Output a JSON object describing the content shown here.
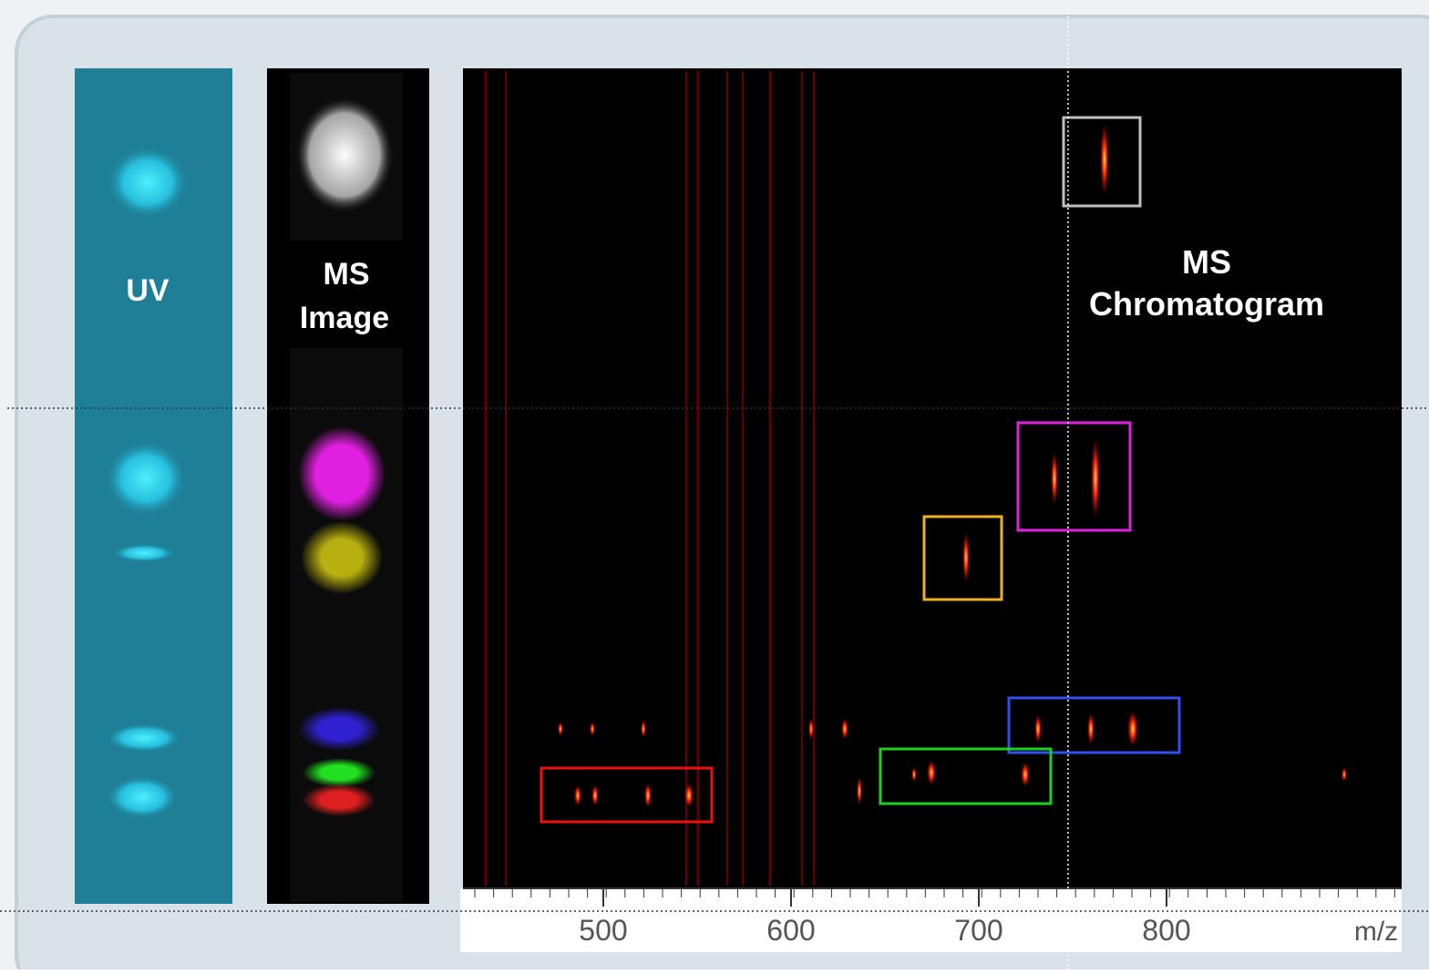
{
  "uv_panel": {
    "label": "UV"
  },
  "ms_image_panel": {
    "label_lines": [
      "MS",
      "Image"
    ]
  },
  "chromatogram": {
    "title_lines": [
      "MS",
      "Chromatogram"
    ],
    "x_axis": {
      "ticks": [
        500,
        600,
        700,
        800
      ],
      "label": "m/z"
    }
  }
}
